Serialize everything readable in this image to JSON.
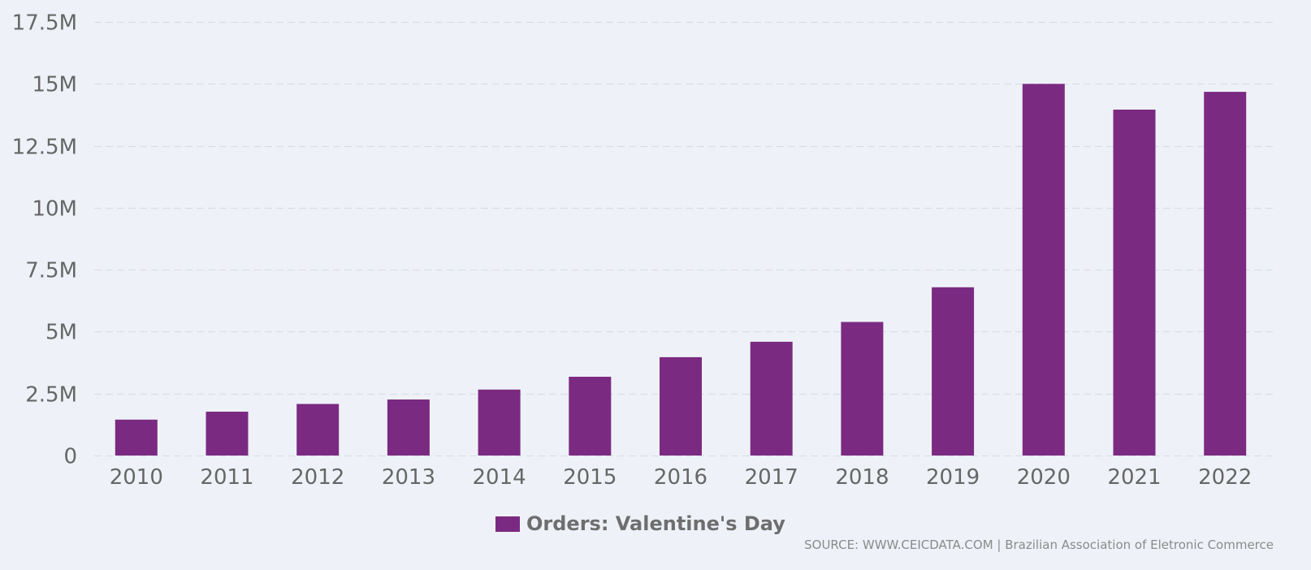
{
  "colors": {
    "bar": "#7b2a82",
    "background": "#eef2f8",
    "grid": "#d9dde5",
    "axis_text": "#666666"
  },
  "chart_data": {
    "type": "bar",
    "categories": [
      "2010",
      "2011",
      "2012",
      "2013",
      "2014",
      "2015",
      "2016",
      "2017",
      "2018",
      "2019",
      "2020",
      "2021",
      "2022"
    ],
    "series": [
      {
        "name": "Orders: Valentine's Day",
        "values": [
          1.45,
          1.77,
          2.08,
          2.26,
          2.66,
          3.18,
          3.97,
          4.59,
          5.39,
          6.79,
          15.0,
          13.96,
          14.68
        ]
      }
    ],
    "value_unit": "M",
    "ylim": [
      0,
      17.5
    ],
    "yticks": [
      {
        "value": 0,
        "label": "0"
      },
      {
        "value": 2.5,
        "label": "2.5M"
      },
      {
        "value": 5,
        "label": "5M"
      },
      {
        "value": 7.5,
        "label": "7.5M"
      },
      {
        "value": 10,
        "label": "10M"
      },
      {
        "value": 12.5,
        "label": "12.5M"
      },
      {
        "value": 15,
        "label": "15M"
      },
      {
        "value": 17.5,
        "label": "17.5M"
      }
    ],
    "grid": true,
    "legend_position": "bottom-center",
    "title": "",
    "xlabel": "",
    "ylabel": ""
  },
  "legend": {
    "label": "Orders: Valentine's Day"
  },
  "source": {
    "text": "SOURCE: WWW.CEICDATA.COM | Brazilian Association of Eletronic Commerce"
  }
}
